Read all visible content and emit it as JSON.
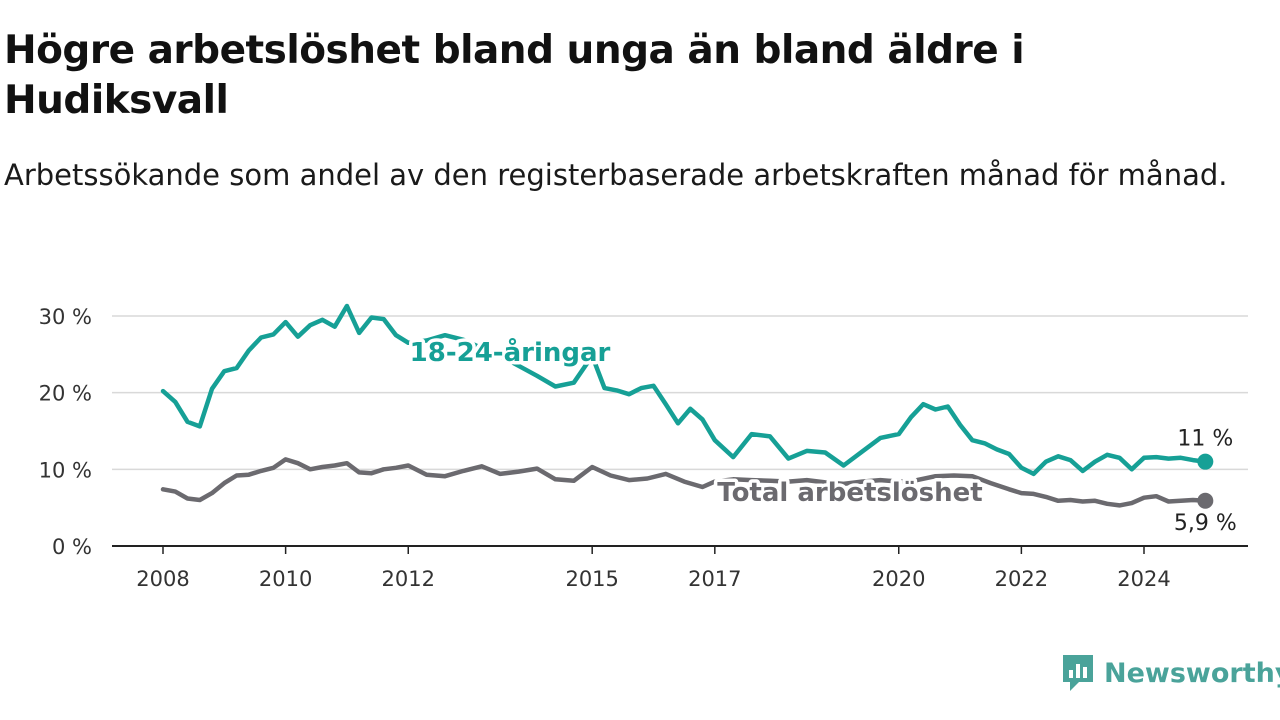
{
  "title": "Högre arbetslöshet bland unga än bland äldre i Hudiksvall",
  "subtitle": "Arbetssökande som andel av den registerbaserade arbetskraften månad för månad.",
  "brand": {
    "name": "Newsworthy",
    "icon": "newsworthy-logo-icon",
    "color": "#4aa39a"
  },
  "chart_data": {
    "type": "line",
    "x_unit": "year",
    "y_unit": "%",
    "xlim": [
      2007.9,
      2025.8
    ],
    "ylim": [
      0,
      30
    ],
    "grid": true,
    "x_ticks": [
      2008,
      2010,
      2012,
      2015,
      2017,
      2020,
      2022,
      2024
    ],
    "x_tick_labels": [
      "2008",
      "2010",
      "2012",
      "2015",
      "2017",
      "2020",
      "2022",
      "2024"
    ],
    "y_ticks": [
      0,
      10,
      20,
      30
    ],
    "y_tick_labels": [
      "0 %",
      "10 %",
      "20 %",
      "30 %"
    ],
    "series": [
      {
        "name": "18-24-åringar",
        "color": "#16a096",
        "end_label": "11 %",
        "x": [
          2008.0,
          2008.2,
          2008.4,
          2008.6,
          2008.8,
          2009.0,
          2009.2,
          2009.4,
          2009.6,
          2009.8,
          2010.0,
          2010.2,
          2010.4,
          2010.6,
          2010.8,
          2011.0,
          2011.2,
          2011.4,
          2011.6,
          2011.8,
          2012.0,
          2012.3,
          2012.6,
          2012.9,
          2013.2,
          2013.5,
          2013.8,
          2014.1,
          2014.4,
          2014.7,
          2015.0,
          2015.2,
          2015.4,
          2015.6,
          2015.8,
          2016.0,
          2016.2,
          2016.4,
          2016.6,
          2016.8,
          2017.0,
          2017.3,
          2017.6,
          2017.9,
          2018.2,
          2018.5,
          2018.8,
          2019.1,
          2019.4,
          2019.7,
          2020.0,
          2020.2,
          2020.4,
          2020.6,
          2020.8,
          2021.0,
          2021.2,
          2021.4,
          2021.6,
          2021.8,
          2022.0,
          2022.2,
          2022.4,
          2022.6,
          2022.8,
          2023.0,
          2023.2,
          2023.4,
          2023.6,
          2023.8,
          2024.0,
          2024.2,
          2024.4,
          2024.6,
          2024.8,
          2025.0
        ],
        "values": [
          20.2,
          18.8,
          16.2,
          15.6,
          20.5,
          22.8,
          23.2,
          25.5,
          27.2,
          27.6,
          29.2,
          27.3,
          28.8,
          29.5,
          28.6,
          31.3,
          27.8,
          29.8,
          29.6,
          27.5,
          26.5,
          26.8,
          27.5,
          26.9,
          25.8,
          24.8,
          23.5,
          22.2,
          20.8,
          21.3,
          24.8,
          20.6,
          20.3,
          19.8,
          20.6,
          20.9,
          18.5,
          16.0,
          17.9,
          16.5,
          13.8,
          11.6,
          14.6,
          14.3,
          11.4,
          12.4,
          12.2,
          10.5,
          12.3,
          14.1,
          14.6,
          16.8,
          18.5,
          17.8,
          18.2,
          15.8,
          13.8,
          13.4,
          12.6,
          12.0,
          10.2,
          9.4,
          11.0,
          11.7,
          11.2,
          9.8,
          11.0,
          11.9,
          11.5,
          10.0,
          11.5,
          11.6,
          11.4,
          11.5,
          11.2,
          11.0
        ]
      },
      {
        "name": "Total arbetslöshet",
        "color": "#6b6a6f",
        "end_label": "5,9 %",
        "x": [
          2008.0,
          2008.2,
          2008.4,
          2008.6,
          2008.8,
          2009.0,
          2009.2,
          2009.4,
          2009.6,
          2009.8,
          2010.0,
          2010.2,
          2010.4,
          2010.6,
          2010.8,
          2011.0,
          2011.2,
          2011.4,
          2011.6,
          2011.8,
          2012.0,
          2012.3,
          2012.6,
          2012.9,
          2013.2,
          2013.5,
          2013.8,
          2014.1,
          2014.4,
          2014.7,
          2015.0,
          2015.3,
          2015.6,
          2015.9,
          2016.2,
          2016.5,
          2016.8,
          2017.0,
          2017.3,
          2017.6,
          2017.9,
          2018.2,
          2018.5,
          2018.8,
          2019.1,
          2019.4,
          2019.7,
          2020.0,
          2020.3,
          2020.6,
          2020.9,
          2021.2,
          2021.5,
          2021.8,
          2022.0,
          2022.2,
          2022.4,
          2022.6,
          2022.8,
          2023.0,
          2023.2,
          2023.4,
          2023.6,
          2023.8,
          2024.0,
          2024.2,
          2024.4,
          2024.6,
          2024.8,
          2025.0
        ],
        "values": [
          7.4,
          7.1,
          6.2,
          6.0,
          6.9,
          8.2,
          9.2,
          9.3,
          9.8,
          10.2,
          11.3,
          10.8,
          10.0,
          10.3,
          10.5,
          10.8,
          9.6,
          9.5,
          10.0,
          10.2,
          10.5,
          9.3,
          9.1,
          9.8,
          10.4,
          9.4,
          9.7,
          10.1,
          8.7,
          8.5,
          10.3,
          9.2,
          8.6,
          8.8,
          9.4,
          8.4,
          7.7,
          8.4,
          8.7,
          8.6,
          8.5,
          8.4,
          8.6,
          8.3,
          8.1,
          8.4,
          8.6,
          8.4,
          8.6,
          9.1,
          9.2,
          9.1,
          8.2,
          7.4,
          6.9,
          6.8,
          6.4,
          5.9,
          6.0,
          5.8,
          5.9,
          5.5,
          5.3,
          5.6,
          6.3,
          6.5,
          5.8,
          5.9,
          6.0,
          5.9
        ]
      }
    ]
  }
}
